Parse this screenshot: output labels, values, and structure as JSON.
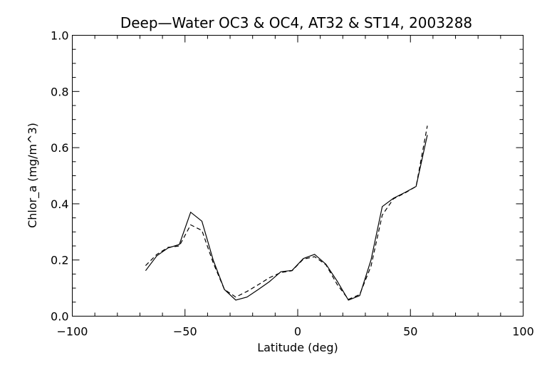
{
  "chart_data": {
    "type": "line",
    "title": "Deep—Water OC3 & OC4, AT32 & ST14, 2003288",
    "xlabel": "Latitude (deg)",
    "ylabel": "Chlor_a (mg/m^3)",
    "xlim": [
      -100,
      100
    ],
    "ylim": [
      0.0,
      1.0
    ],
    "x_major_ticks": [
      -100,
      -50,
      0,
      50,
      100
    ],
    "x_tick_labels": [
      "−100",
      "−50",
      "0",
      "50",
      "100"
    ],
    "x_minor_step": 10,
    "y_major_ticks": [
      0.0,
      0.2,
      0.4,
      0.6,
      0.8,
      1.0
    ],
    "y_tick_labels": [
      "0.0",
      "0.2",
      "0.4",
      "0.6",
      "0.8",
      "1.0"
    ],
    "y_minor_step": 0.05,
    "grid": false,
    "series": [
      {
        "style": "solid",
        "x": [
          -67.5,
          -62.5,
          -57.5,
          -52.5,
          -47.5,
          -42.5,
          -37.5,
          -32.5,
          -27.5,
          -22.5,
          -17.5,
          -12.5,
          -7.5,
          -2.5,
          2.5,
          7.5,
          12.5,
          17.5,
          22.5,
          27.5,
          32.5,
          37.5,
          42.5,
          47.5,
          52.5,
          57.5
        ],
        "y": [
          0.162,
          0.215,
          0.243,
          0.255,
          0.37,
          0.338,
          0.2,
          0.095,
          0.057,
          0.068,
          0.095,
          0.123,
          0.158,
          0.163,
          0.205,
          0.22,
          0.185,
          0.125,
          0.057,
          0.073,
          0.2,
          0.39,
          0.42,
          0.44,
          0.462,
          0.645
        ]
      },
      {
        "style": "dashed",
        "x": [
          -67.5,
          -62.5,
          -57.5,
          -52.5,
          -47.5,
          -42.5,
          -37.5,
          -32.5,
          -27.5,
          -22.5,
          -17.5,
          -12.5,
          -7.5,
          -2.5,
          2.5,
          7.5,
          12.5,
          17.5,
          22.5,
          27.5,
          32.5,
          37.5,
          42.5,
          47.5,
          52.5,
          57.5
        ],
        "y": [
          0.18,
          0.22,
          0.245,
          0.25,
          0.325,
          0.305,
          0.19,
          0.095,
          0.068,
          0.088,
          0.112,
          0.137,
          0.155,
          0.162,
          0.203,
          0.212,
          0.183,
          0.113,
          0.06,
          0.077,
          0.178,
          0.36,
          0.418,
          0.438,
          0.462,
          0.678
        ]
      }
    ]
  }
}
